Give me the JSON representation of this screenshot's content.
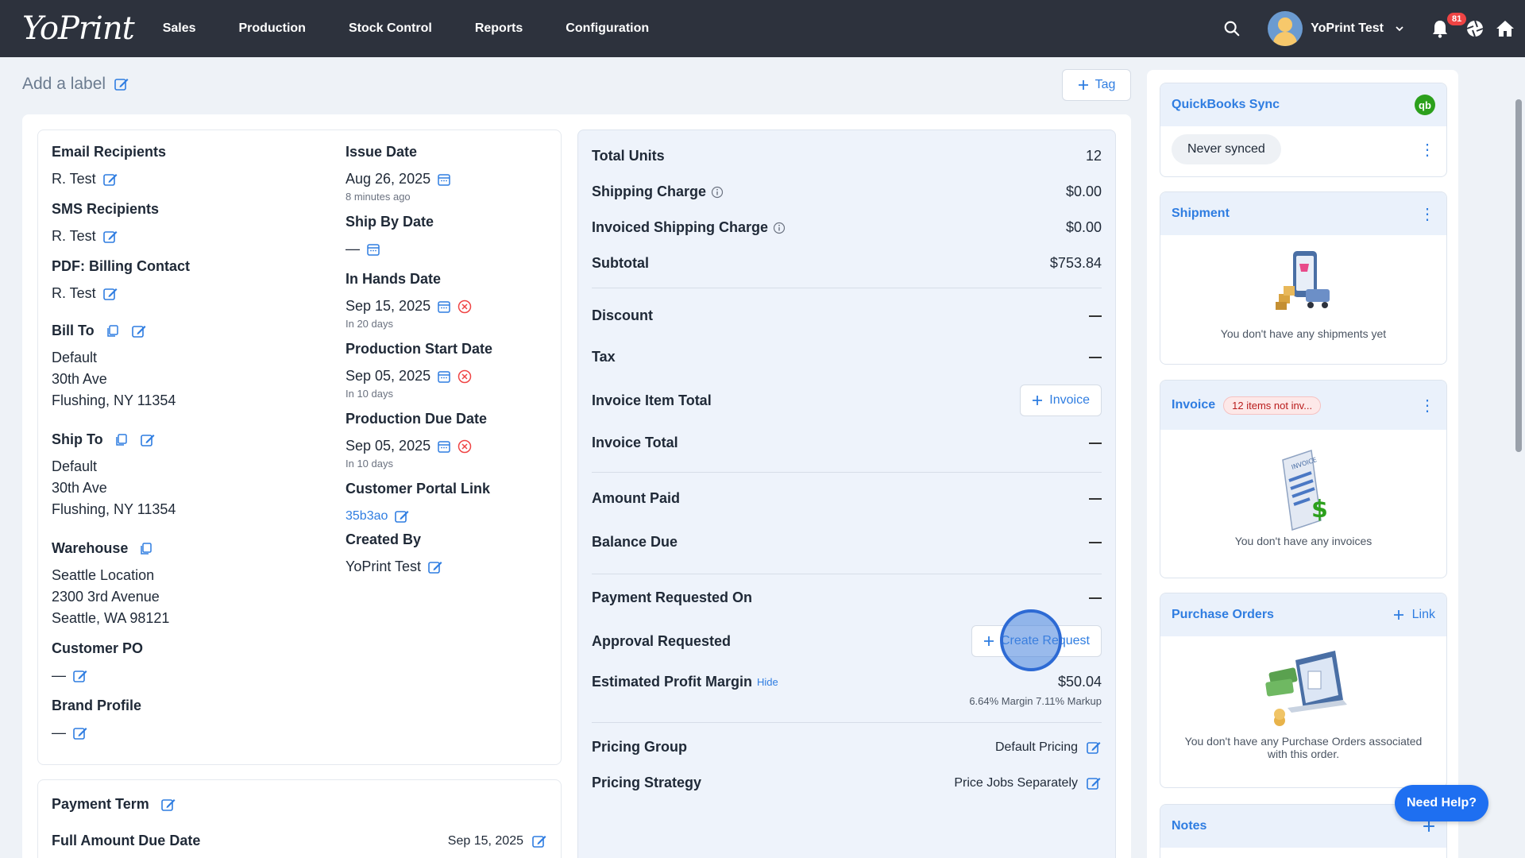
{
  "nav": {
    "logo": "YoPrint",
    "items": [
      "Sales",
      "Production",
      "Stock Control",
      "Reports",
      "Configuration"
    ],
    "user_name": "YoPrint Test",
    "notification_count": "81"
  },
  "label_bar": {
    "add_label": "Add a label",
    "tag_button": "Tag"
  },
  "details": {
    "email_recipients": {
      "label": "Email Recipients",
      "value": "R. Test"
    },
    "sms_recipients": {
      "label": "SMS Recipients",
      "value": "R. Test"
    },
    "pdf_billing_contact": {
      "label": "PDF: Billing Contact",
      "value": "R. Test"
    },
    "bill_to": {
      "label": "Bill To",
      "line1": "Default",
      "line2": "30th Ave",
      "line3": "Flushing, NY 11354"
    },
    "ship_to": {
      "label": "Ship To",
      "line1": "Default",
      "line2": "30th Ave",
      "line3": "Flushing, NY 11354"
    },
    "warehouse": {
      "label": "Warehouse",
      "line1": "Seattle Location",
      "line2": "2300 3rd Avenue",
      "line3": "Seattle, WA 98121"
    },
    "customer_po": {
      "label": "Customer PO",
      "value": "—"
    },
    "brand_profile": {
      "label": "Brand Profile",
      "value": "—"
    },
    "issue_date": {
      "label": "Issue Date",
      "value": "Aug 26, 2025",
      "sub": "8 minutes ago"
    },
    "ship_by_date": {
      "label": "Ship By Date",
      "value": "—"
    },
    "in_hands_date": {
      "label": "In Hands Date",
      "value": "Sep 15, 2025",
      "sub": "In 20 days"
    },
    "production_start_date": {
      "label": "Production Start Date",
      "value": "Sep 05, 2025",
      "sub": "In 10 days"
    },
    "production_due_date": {
      "label": "Production Due Date",
      "value": "Sep 05, 2025",
      "sub": "In 10 days"
    },
    "customer_portal_link": {
      "label": "Customer Portal Link",
      "value": "35b3ao"
    },
    "created_by": {
      "label": "Created By",
      "value": "YoPrint Test"
    }
  },
  "payment": {
    "term_label": "Payment Term",
    "full_amount_due_label": "Full Amount Due Date",
    "full_amount_due_value": "Sep 15, 2025"
  },
  "summary": {
    "total_units": {
      "label": "Total Units",
      "value": "12"
    },
    "shipping_charge": {
      "label": "Shipping Charge",
      "value": "$0.00"
    },
    "invoiced_shipping_charge": {
      "label": "Invoiced Shipping Charge",
      "value": "$0.00"
    },
    "subtotal": {
      "label": "Subtotal",
      "value": "$753.84"
    },
    "discount": {
      "label": "Discount"
    },
    "tax": {
      "label": "Tax"
    },
    "invoice_item_total": {
      "label": "Invoice Item Total",
      "button": "Invoice"
    },
    "invoice_total": {
      "label": "Invoice Total"
    },
    "amount_paid": {
      "label": "Amount Paid"
    },
    "balance_due": {
      "label": "Balance Due"
    },
    "payment_requested_on": {
      "label": "Payment Requested On"
    },
    "approval_requested": {
      "label": "Approval Requested",
      "button": "Create Request"
    },
    "estimated_profit_margin": {
      "label": "Estimated Profit Margin",
      "hide": "Hide",
      "value": "$50.04",
      "detail": "6.64% Margin 7.11% Markup"
    },
    "pricing_group": {
      "label": "Pricing Group",
      "value": "Default Pricing"
    },
    "pricing_strategy": {
      "label": "Pricing Strategy",
      "value": "Price Jobs Separately"
    }
  },
  "sidebar": {
    "quickbooks": {
      "title": "QuickBooks Sync",
      "icon_text": "qb",
      "status": "Never synced"
    },
    "shipment": {
      "title": "Shipment",
      "empty": "You don't have any shipments yet"
    },
    "invoice": {
      "title": "Invoice",
      "badge": "12 items not inv...",
      "empty": "You don't have any invoices",
      "doc_text": "INVOICE"
    },
    "purchase_orders": {
      "title": "Purchase Orders",
      "link": "Link",
      "empty": "You don't have any Purchase Orders associated with this order."
    },
    "notes": {
      "title": "Notes"
    }
  },
  "help_button": "Need Help?",
  "colors": {
    "accent": "#2f7de1",
    "nav_bg": "#2d323d",
    "danger": "#ef4444",
    "quickbooks": "#2ca01c"
  }
}
